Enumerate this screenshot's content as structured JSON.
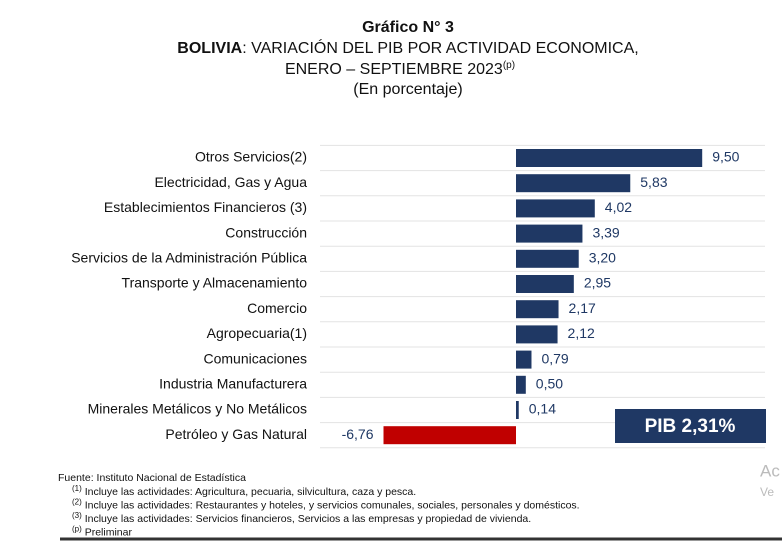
{
  "chart_data": {
    "type": "hbar",
    "heading": "Gráfico N° 3",
    "title_bold": "BOLIVIA",
    "title_rest": ": VARIACIÓN DEL PIB POR ACTIVIDAD ECONOMICA,",
    "title_line2": "ENERO – SEPTIEMBRE 2023",
    "title_line2_mark": "(p)",
    "subtitle": "(En porcentaje)",
    "categories": [
      "Otros Servicios(2)",
      "Electricidad, Gas y Agua",
      "Establecimientos Financieros (3)",
      "Construcción",
      "Servicios de la Administración Pública",
      "Transporte y Almacenamiento",
      "Comercio",
      "Agropecuaria(1)",
      "Comunicaciones",
      "Industria Manufacturera",
      "Minerales Metálicos y No Metálicos",
      "Petróleo y Gas Natural"
    ],
    "values": [
      9.5,
      5.83,
      4.02,
      3.39,
      3.2,
      2.95,
      2.17,
      2.12,
      0.79,
      0.5,
      0.14,
      -6.76
    ],
    "value_labels": [
      "9,50",
      "5,83",
      "4,02",
      "3,39",
      "3,20",
      "2,95",
      "2,17",
      "2,12",
      "0,79",
      "0,50",
      "0,14",
      "-6,76"
    ],
    "color": "#1f3864",
    "negative_color": "#c00000",
    "grid": true,
    "annotation": "PIB 2,31%",
    "source": "Fuente: Instituto Nacional de Estadística",
    "footnotes": [
      {
        "mark": "(1)",
        "text": " Incluye las actividades: Agricultura, pecuaria, silvicultura, caza y pesca."
      },
      {
        "mark": "(2)",
        "text": " Incluye las actividades: Restaurantes y hoteles, y servicios comunales, sociales, personales y domésticos."
      },
      {
        "mark": "(3)",
        "text": " Incluye las actividades: Servicios financieros, Servicios a las empresas y propiedad de vivienda."
      },
      {
        "mark": "(p)",
        "text": " Preliminar"
      }
    ],
    "watermark": [
      "Ac",
      "Ve"
    ]
  }
}
